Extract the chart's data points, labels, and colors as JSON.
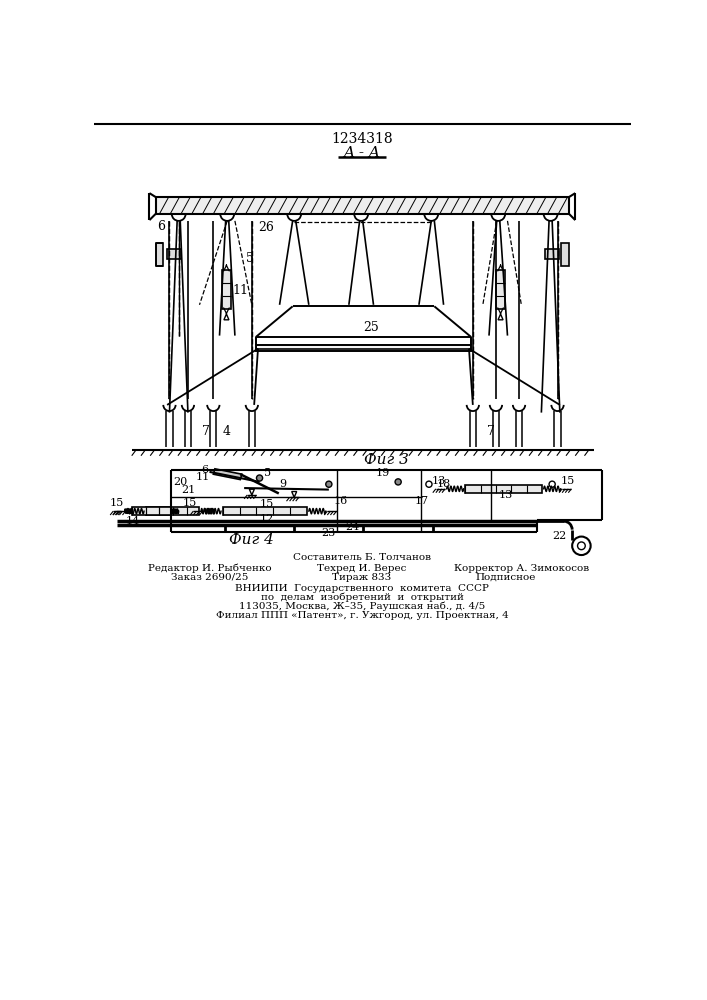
{
  "patent_number": "1234318",
  "fig3_label": "Фиг 3",
  "fig4_label": "Фиг 4",
  "section_label": "A - A",
  "bg_color": "#ffffff",
  "line_color": "#000000"
}
